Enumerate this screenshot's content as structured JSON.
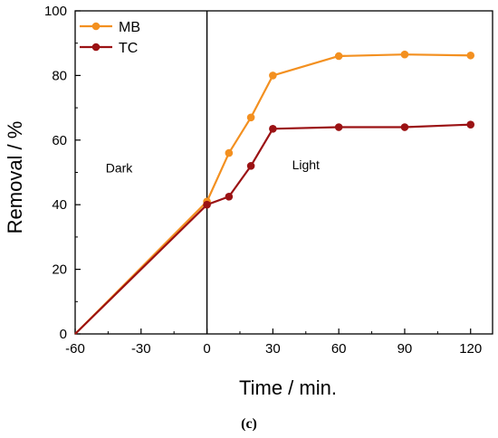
{
  "chart_data": {
    "type": "line",
    "xlabel": "Time / min.",
    "ylabel": "Removal / %",
    "xlim": [
      -60,
      130
    ],
    "ylim": [
      0,
      100
    ],
    "x_ticks": [
      -60,
      -30,
      0,
      30,
      60,
      90,
      120
    ],
    "y_ticks": [
      0,
      20,
      40,
      60,
      80,
      100
    ],
    "grid": false,
    "legend_position": "top-left",
    "series": [
      {
        "name": "MB",
        "color": "#f39020",
        "x": [
          -60,
          0,
          10,
          20,
          30,
          60,
          90,
          120
        ],
        "y": [
          0,
          41,
          56,
          67,
          80,
          86,
          86.5,
          86.2
        ],
        "markers": [
          false,
          true,
          true,
          true,
          true,
          true,
          true,
          true
        ]
      },
      {
        "name": "TC",
        "color": "#9b1214",
        "x": [
          -60,
          0,
          10,
          20,
          30,
          60,
          90,
          120
        ],
        "y": [
          0,
          40,
          42.5,
          52,
          63.5,
          64,
          64,
          64.8
        ],
        "markers": [
          false,
          true,
          true,
          true,
          true,
          true,
          true,
          true
        ]
      }
    ],
    "vertical_line_x": 0,
    "annotations": [
      {
        "text": "Dark",
        "x": -40,
        "y": 50
      },
      {
        "text": "Light",
        "x": 45,
        "y": 51
      }
    ]
  },
  "caption": "(c)"
}
